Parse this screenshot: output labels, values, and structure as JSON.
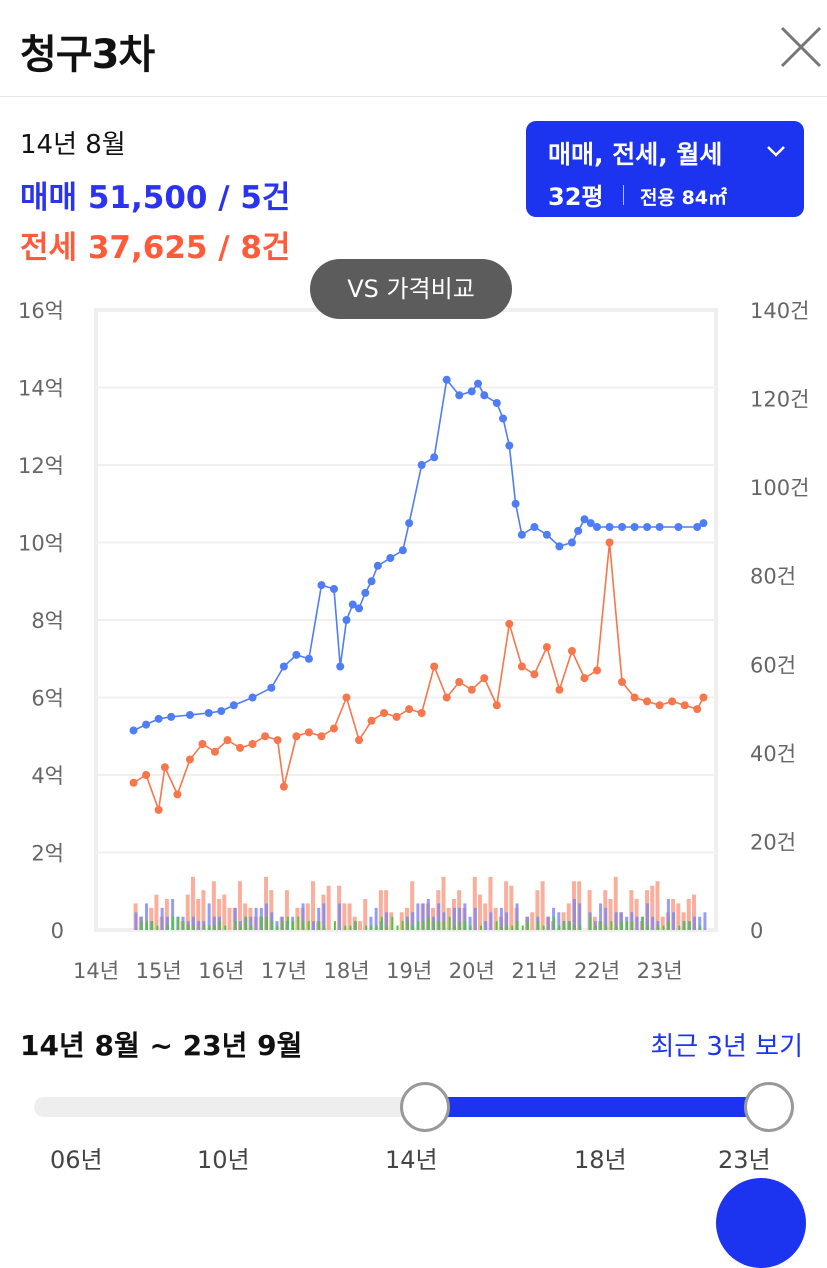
{
  "header": {
    "title": "청구3차"
  },
  "summary": {
    "date": "14년 8월",
    "sale_text": "매매 51,500 / 5건",
    "jeonse_text": "전세 37,625 / 8건"
  },
  "selector": {
    "types": "매매, 전세, 월세",
    "size": "32평",
    "area": "전용 84㎡"
  },
  "compare_button": {
    "label": "VS 가격비교"
  },
  "chart_data": {
    "type": "line",
    "x_ticks": [
      "14년",
      "15년",
      "16년",
      "17년",
      "18년",
      "19년",
      "20년",
      "21년",
      "22년",
      "23년"
    ],
    "y_left_ticks": [
      "0",
      "2억",
      "4억",
      "6억",
      "8억",
      "10억",
      "12억",
      "14억",
      "16억"
    ],
    "y_right_ticks": [
      "0",
      "20건",
      "40건",
      "60건",
      "80건",
      "100건",
      "120건",
      "140건"
    ],
    "ylim_left": [
      0,
      16
    ],
    "ylim_right": [
      0,
      140
    ],
    "colors": {
      "sale": "#4f7df5",
      "jeonse": "#f7764b",
      "sale_volume": "#7b86f0",
      "jeonse_volume": "#f9a18c",
      "rent_volume": "#4fc73c"
    },
    "series": [
      {
        "key": "sale",
        "x": [
          2014.6,
          2014.8,
          2015.0,
          2015.2,
          2015.5,
          2015.8,
          2016.0,
          2016.2,
          2016.5,
          2016.8,
          2017.0,
          2017.2,
          2017.4,
          2017.6,
          2017.8,
          2017.9,
          2018.0,
          2018.1,
          2018.2,
          2018.3,
          2018.4,
          2018.5,
          2018.7,
          2018.9,
          2019.0,
          2019.2,
          2019.4,
          2019.6,
          2019.8,
          2020.0,
          2020.1,
          2020.2,
          2020.4,
          2020.5,
          2020.6,
          2020.7,
          2020.8,
          2021.0,
          2021.2,
          2021.4,
          2021.6,
          2021.7,
          2021.8,
          2021.9,
          2022.0,
          2022.2,
          2022.4,
          2022.6,
          2022.8,
          2023.0,
          2023.3,
          2023.6,
          2023.7
        ],
        "values": [
          5.15,
          5.3,
          5.45,
          5.5,
          5.55,
          5.6,
          5.65,
          5.8,
          6.0,
          6.25,
          6.8,
          7.1,
          7.0,
          8.9,
          8.8,
          6.8,
          8.0,
          8.4,
          8.3,
          8.7,
          9.0,
          9.4,
          9.6,
          9.8,
          10.5,
          12.0,
          12.2,
          14.2,
          13.8,
          13.9,
          14.1,
          13.8,
          13.6,
          13.2,
          12.5,
          11.0,
          10.2,
          10.4,
          10.2,
          9.9,
          10.0,
          10.3,
          10.6,
          10.5,
          10.4,
          10.4,
          10.4,
          10.4,
          10.4,
          10.4,
          10.4,
          10.4,
          10.5
        ]
      },
      {
        "key": "jeonse",
        "x": [
          2014.6,
          2014.8,
          2015.0,
          2015.1,
          2015.3,
          2015.5,
          2015.7,
          2015.9,
          2016.1,
          2016.3,
          2016.5,
          2016.7,
          2016.9,
          2017.0,
          2017.2,
          2017.4,
          2017.6,
          2017.8,
          2018.0,
          2018.2,
          2018.4,
          2018.6,
          2018.8,
          2019.0,
          2019.2,
          2019.4,
          2019.6,
          2019.8,
          2020.0,
          2020.2,
          2020.4,
          2020.6,
          2020.8,
          2021.0,
          2021.2,
          2021.4,
          2021.6,
          2021.8,
          2022.0,
          2022.2,
          2022.4,
          2022.6,
          2022.8,
          2023.0,
          2023.2,
          2023.4,
          2023.6,
          2023.7
        ],
        "values": [
          3.8,
          4.0,
          3.1,
          4.2,
          3.5,
          4.4,
          4.8,
          4.6,
          4.9,
          4.7,
          4.8,
          5.0,
          4.9,
          3.7,
          5.0,
          5.1,
          5.0,
          5.2,
          6.0,
          4.9,
          5.4,
          5.6,
          5.5,
          5.7,
          5.6,
          6.8,
          6.0,
          6.4,
          6.2,
          6.5,
          5.8,
          7.9,
          6.8,
          6.6,
          7.3,
          6.2,
          7.2,
          6.5,
          6.7,
          10.0,
          6.4,
          6.0,
          5.9,
          5.8,
          5.9,
          5.8,
          5.7,
          6.0
        ]
      }
    ],
    "volume_note": "monthly transaction volume bars (sale, jeonse, monthly rent) at bottom, right axis"
  },
  "range": {
    "label": "14년 8월 ~ 23년 9월",
    "recent_link": "최근 3년 보기",
    "ticks": [
      "06년",
      "10년",
      "14년",
      "18년",
      "23년"
    ]
  }
}
